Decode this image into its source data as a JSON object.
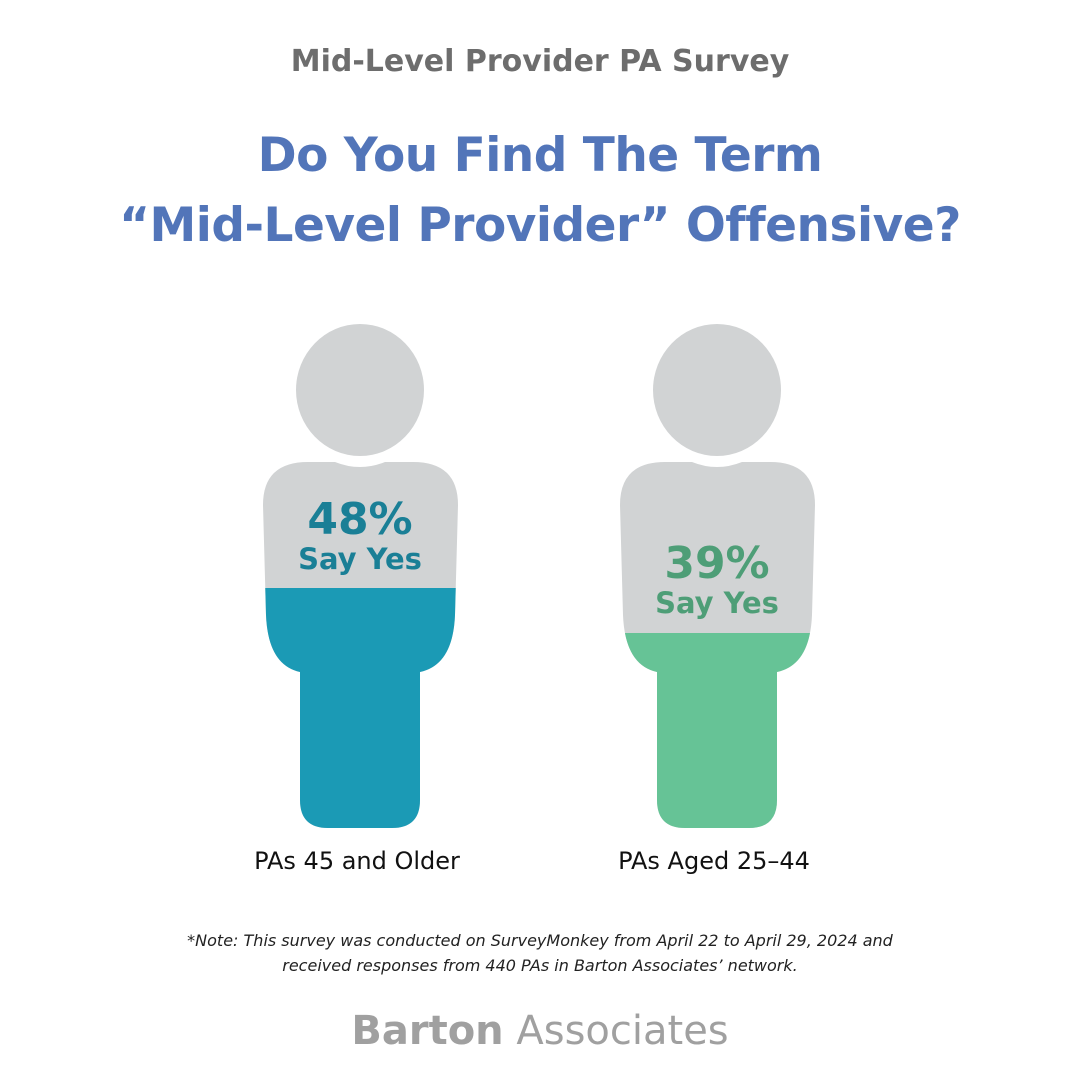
{
  "survey_title": "Mid-Level Provider PA Survey",
  "headline": [
    "Do You Find The Term",
    "“Mid-Level Provider” Offensive?"
  ],
  "chart_data": {
    "type": "pictogram",
    "unit": "%",
    "categories": [
      "PAs 45 and Older",
      "PAs Aged 25–44"
    ],
    "values": [
      48,
      39
    ],
    "value_labels": [
      "48%",
      "39%"
    ],
    "sublabel": "Say Yes",
    "colors": [
      "#1b9ab5",
      "#66c396"
    ],
    "label_colors": [
      "#1a7f96",
      "#4e9e77"
    ],
    "base_color": "#d1d3d4"
  },
  "note": [
    "*Note: This survey was conducted on SurveyMonkey from April 22 to April 29, 2024 and",
    "received responses from 440 PAs in Barton Associates’ network."
  ],
  "logo": {
    "bold": "Barton",
    "light": "Associates"
  }
}
